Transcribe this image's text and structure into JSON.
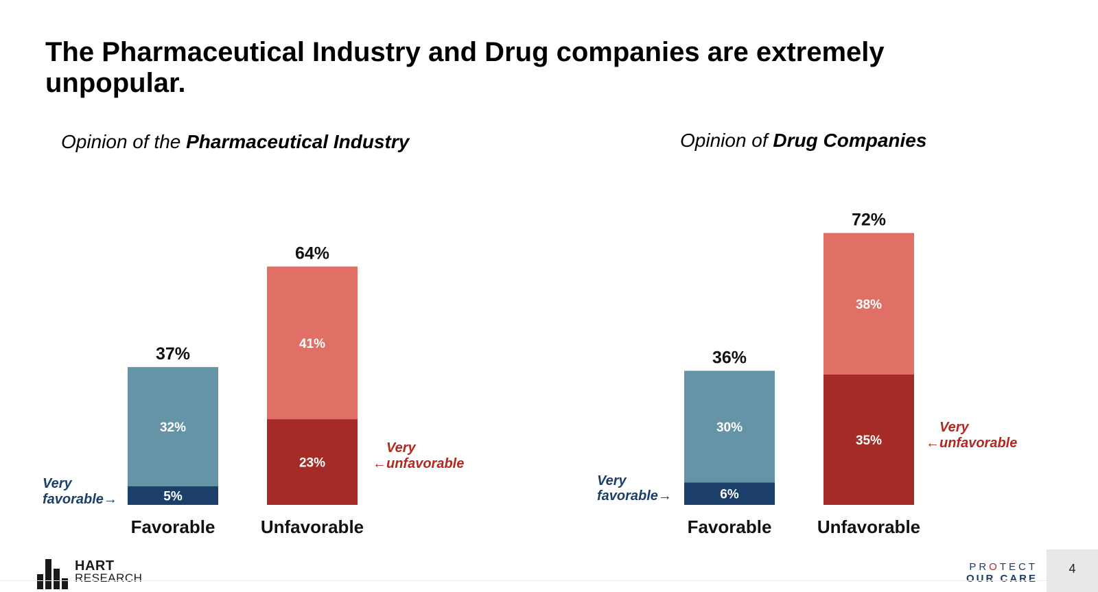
{
  "slide": {
    "title": "The Pharmaceutical Industry and Drug companies are extremely unpopular.",
    "page_number": "4"
  },
  "colors": {
    "very_favorable": "#1b3f69",
    "favorable": "#6694a7",
    "unfavorable": "#e07066",
    "very_unfavorable": "#a52c26",
    "very_favorable_label": "#1b3f69",
    "very_unfavorable_label": "#b2271f"
  },
  "logos": {
    "left_top": "HART",
    "left_bottom": "RESEARCH",
    "right_top": "PROTECT",
    "right_bottom": "OUR CARE"
  },
  "chart_data": [
    {
      "type": "bar",
      "stacked": true,
      "title_prefix": "Opinion of the ",
      "title_bold": "Pharmaceutical Industry",
      "categories": [
        "Favorable",
        "Unfavorable"
      ],
      "totals": [
        37,
        64
      ],
      "total_labels": [
        "37%",
        "64%"
      ],
      "bottom_values": [
        5,
        23
      ],
      "bottom_labels": [
        "5%",
        "23%"
      ],
      "top_values": [
        32,
        41
      ],
      "top_labels": [
        "32%",
        "41%"
      ],
      "annotations": {
        "very_favorable": [
          "Very",
          "favorable→"
        ],
        "very_unfavorable": [
          "Very",
          "←unfavorable"
        ]
      }
    },
    {
      "type": "bar",
      "stacked": true,
      "title_prefix": "Opinion of ",
      "title_bold": "Drug Companies",
      "categories": [
        "Favorable",
        "Unfavorable"
      ],
      "totals": [
        36,
        72
      ],
      "total_labels": [
        "36%",
        "72%"
      ],
      "bottom_values": [
        6,
        35
      ],
      "bottom_labels": [
        "6%",
        "35%"
      ],
      "top_values": [
        30,
        38
      ],
      "top_labels": [
        "30%",
        "38%"
      ],
      "annotations": {
        "very_favorable": [
          "Very",
          "favorable→"
        ],
        "very_unfavorable": [
          "Very",
          "←unfavorable"
        ]
      }
    }
  ]
}
